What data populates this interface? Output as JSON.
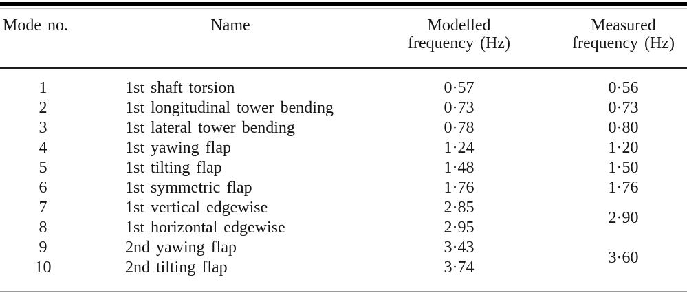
{
  "page": {
    "background": "#ffffff",
    "text_color": "#161616",
    "rule_color": "#000000"
  },
  "table": {
    "header": {
      "mode": "Mode no.",
      "name": "Name",
      "modelled_line1": "Modelled",
      "modelled_line2": "frequency (Hz)",
      "measured_line1": "Measured",
      "measured_line2": "frequency (Hz)"
    },
    "rows": [
      {
        "mode": "1",
        "name": "1st shaft torsion",
        "modelled": "0·57",
        "measured": "0·56"
      },
      {
        "mode": "2",
        "name": "1st longitudinal tower bending",
        "modelled": "0·73",
        "measured": "0·73"
      },
      {
        "mode": "3",
        "name": "1st lateral tower bending",
        "modelled": "0·78",
        "measured": "0·80"
      },
      {
        "mode": "4",
        "name": "1st yawing flap",
        "modelled": "1·24",
        "measured": "1·20"
      },
      {
        "mode": "5",
        "name": "1st tilting flap",
        "modelled": "1·48",
        "measured": "1·50"
      },
      {
        "mode": "6",
        "name": "1st symmetric flap",
        "modelled": "1·76",
        "measured": "1·76"
      },
      {
        "mode": "7",
        "name": "1st vertical edgewise",
        "modelled": "2·85",
        "measured": "2·90"
      },
      {
        "mode": "8",
        "name": "1st horizontal edgewise",
        "modelled": "2·95"
      },
      {
        "mode": "9",
        "name": "2nd yawing flap",
        "modelled": "3·43",
        "measured": "3·60"
      },
      {
        "mode": "10",
        "name": "2nd tilting flap",
        "modelled": "3·74"
      }
    ]
  }
}
